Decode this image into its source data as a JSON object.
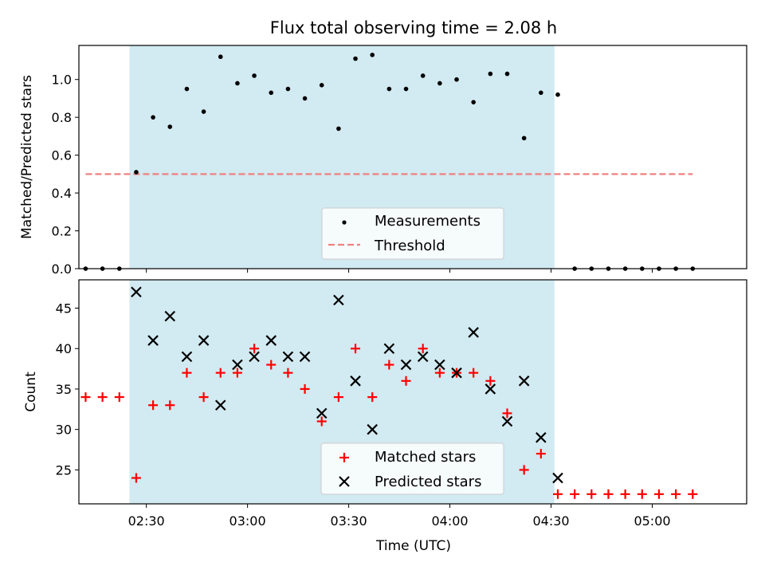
{
  "chart_data": [
    {
      "type": "scatter",
      "title": "Flux total observing time = 2.08 h",
      "xlabel": "",
      "ylabel": "Matched/Predicted stars",
      "ylim": [
        0,
        1.18
      ],
      "yticks": [
        "0.0",
        "0.2",
        "0.4",
        "0.6",
        "0.8",
        "1.0"
      ],
      "xlim": [
        "02:10",
        "05:28"
      ],
      "shaded_region": [
        "02:25",
        "04:31"
      ],
      "shade_color": "#add8e6",
      "series": [
        {
          "name": "Measurements",
          "color": "#000000",
          "x": [
            "02:12",
            "02:17",
            "02:22",
            "02:27",
            "02:32",
            "02:37",
            "02:42",
            "02:47",
            "02:52",
            "02:57",
            "03:02",
            "03:07",
            "03:12",
            "03:17",
            "03:22",
            "03:27",
            "03:32",
            "03:37",
            "03:42",
            "03:47",
            "03:52",
            "03:57",
            "04:02",
            "04:07",
            "04:12",
            "04:17",
            "04:22",
            "04:27",
            "04:32",
            "04:37",
            "04:42",
            "04:47",
            "04:52",
            "04:57",
            "05:02",
            "05:07",
            "05:12"
          ],
          "y": [
            0,
            0,
            0,
            0.51,
            0.8,
            0.75,
            0.95,
            0.83,
            1.12,
            0.98,
            1.02,
            0.93,
            0.95,
            0.9,
            0.97,
            0.74,
            1.11,
            1.13,
            0.95,
            0.95,
            1.02,
            0.98,
            1.0,
            0.88,
            1.03,
            1.03,
            0.69,
            0.93,
            0.92,
            0,
            0,
            0,
            0,
            0,
            0,
            0,
            0
          ]
        },
        {
          "name": "Threshold",
          "color": "#f08080",
          "x": [
            "02:12",
            "05:12"
          ],
          "y": [
            0.5,
            0.5
          ]
        }
      ],
      "legend": "lower-center"
    },
    {
      "type": "scatter",
      "xlabel": "Time (UTC)",
      "ylabel": "Count",
      "ylim": [
        20.8,
        48.5
      ],
      "yticks": [
        "25",
        "30",
        "35",
        "40",
        "45"
      ],
      "xlim": [
        "02:10",
        "05:28"
      ],
      "xticks": [
        "02:30",
        "03:00",
        "03:30",
        "04:00",
        "04:30",
        "05:00"
      ],
      "shaded_region": [
        "02:25",
        "04:31"
      ],
      "series": [
        {
          "name": "Matched stars",
          "color": "#ff0000",
          "x": [
            "02:12",
            "02:17",
            "02:22",
            "02:27",
            "02:32",
            "02:37",
            "02:42",
            "02:47",
            "02:52",
            "02:57",
            "03:02",
            "03:07",
            "03:12",
            "03:17",
            "03:22",
            "03:27",
            "03:32",
            "03:37",
            "03:42",
            "03:47",
            "03:52",
            "03:57",
            "04:02",
            "04:07",
            "04:12",
            "04:17",
            "04:22",
            "04:27",
            "04:32",
            "04:37",
            "04:42",
            "04:47",
            "04:52",
            "04:57",
            "05:02",
            "05:07",
            "05:12"
          ],
          "y": [
            34,
            34,
            34,
            24,
            33,
            33,
            37,
            34,
            37,
            37,
            40,
            38,
            37,
            35,
            31,
            34,
            40,
            34,
            38,
            36,
            40,
            37,
            37,
            37,
            36,
            32,
            25,
            27,
            22,
            22,
            22,
            22,
            22,
            22,
            22,
            22,
            22
          ]
        },
        {
          "name": "Predicted stars",
          "color": "#000000",
          "x": [
            "02:27",
            "02:32",
            "02:37",
            "02:42",
            "02:47",
            "02:52",
            "02:57",
            "03:02",
            "03:07",
            "03:12",
            "03:17",
            "03:22",
            "03:27",
            "03:32",
            "03:37",
            "03:42",
            "03:47",
            "03:52",
            "03:57",
            "04:02",
            "04:07",
            "04:12",
            "04:17",
            "04:22",
            "04:27",
            "04:32"
          ],
          "y": [
            47,
            41,
            44,
            39,
            41,
            33,
            38,
            39,
            41,
            39,
            39,
            32,
            46,
            36,
            30,
            40,
            38,
            39,
            38,
            37,
            42,
            35,
            31,
            36,
            29,
            24
          ]
        }
      ],
      "legend": "lower-center"
    }
  ]
}
